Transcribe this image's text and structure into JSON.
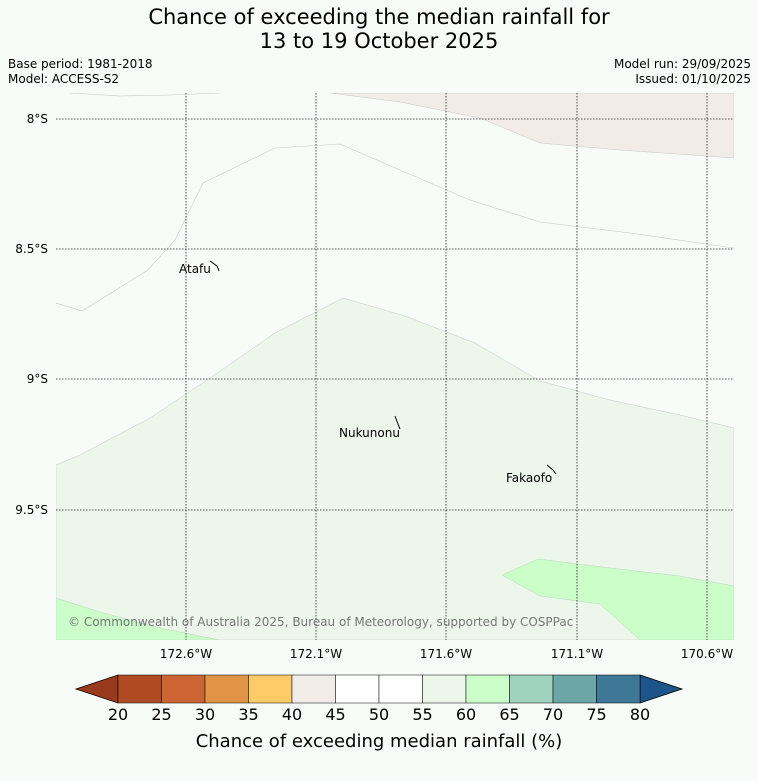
{
  "header": {
    "title_line1": "Chance of exceeding the median rainfall for",
    "title_line2": "13 to 19 October 2025",
    "base_period": "Base period: 1981-2018",
    "model": "Model: ACCESS-S2",
    "model_run": "Model run: 29/09/2025",
    "issued": "Issued: 01/10/2025"
  },
  "map": {
    "lat_labels": [
      "8°S",
      "8.5°S",
      "9°S",
      "9.5°S"
    ],
    "lon_labels": [
      "172.6°W",
      "172.1°W",
      "171.6°W",
      "171.1°W",
      "170.6°W"
    ],
    "places": {
      "atafu": "Atafu",
      "nukunonu": "Nukunonu",
      "fakaofo": "Fakaofo"
    },
    "copyright": "© Commonwealth of Australia 2025, Bureau of Meteorology, supported by COSPPac"
  },
  "colorbar": {
    "ticks": [
      "20",
      "25",
      "30",
      "35",
      "40",
      "45",
      "50",
      "55",
      "60",
      "65",
      "70",
      "75",
      "80"
    ],
    "colors": [
      "#b04a22",
      "#cc6533",
      "#e19446",
      "#fecb66",
      "#f2ece8",
      "#ffffff",
      "#ffffff",
      "#ecf6eb",
      "#cbfec9",
      "#9fd3bf",
      "#6ca6a5",
      "#3f7798"
    ],
    "under_color": "#9a3a1c",
    "over_color": "#1d548a",
    "label": "Chance of exceeding median rainfall (%)"
  },
  "colors": {
    "background": "#f7fcf9",
    "band_40_45": "#f2ece8",
    "band_55_60": "#ecf6eb",
    "band_60_65": "#cbfec9"
  }
}
